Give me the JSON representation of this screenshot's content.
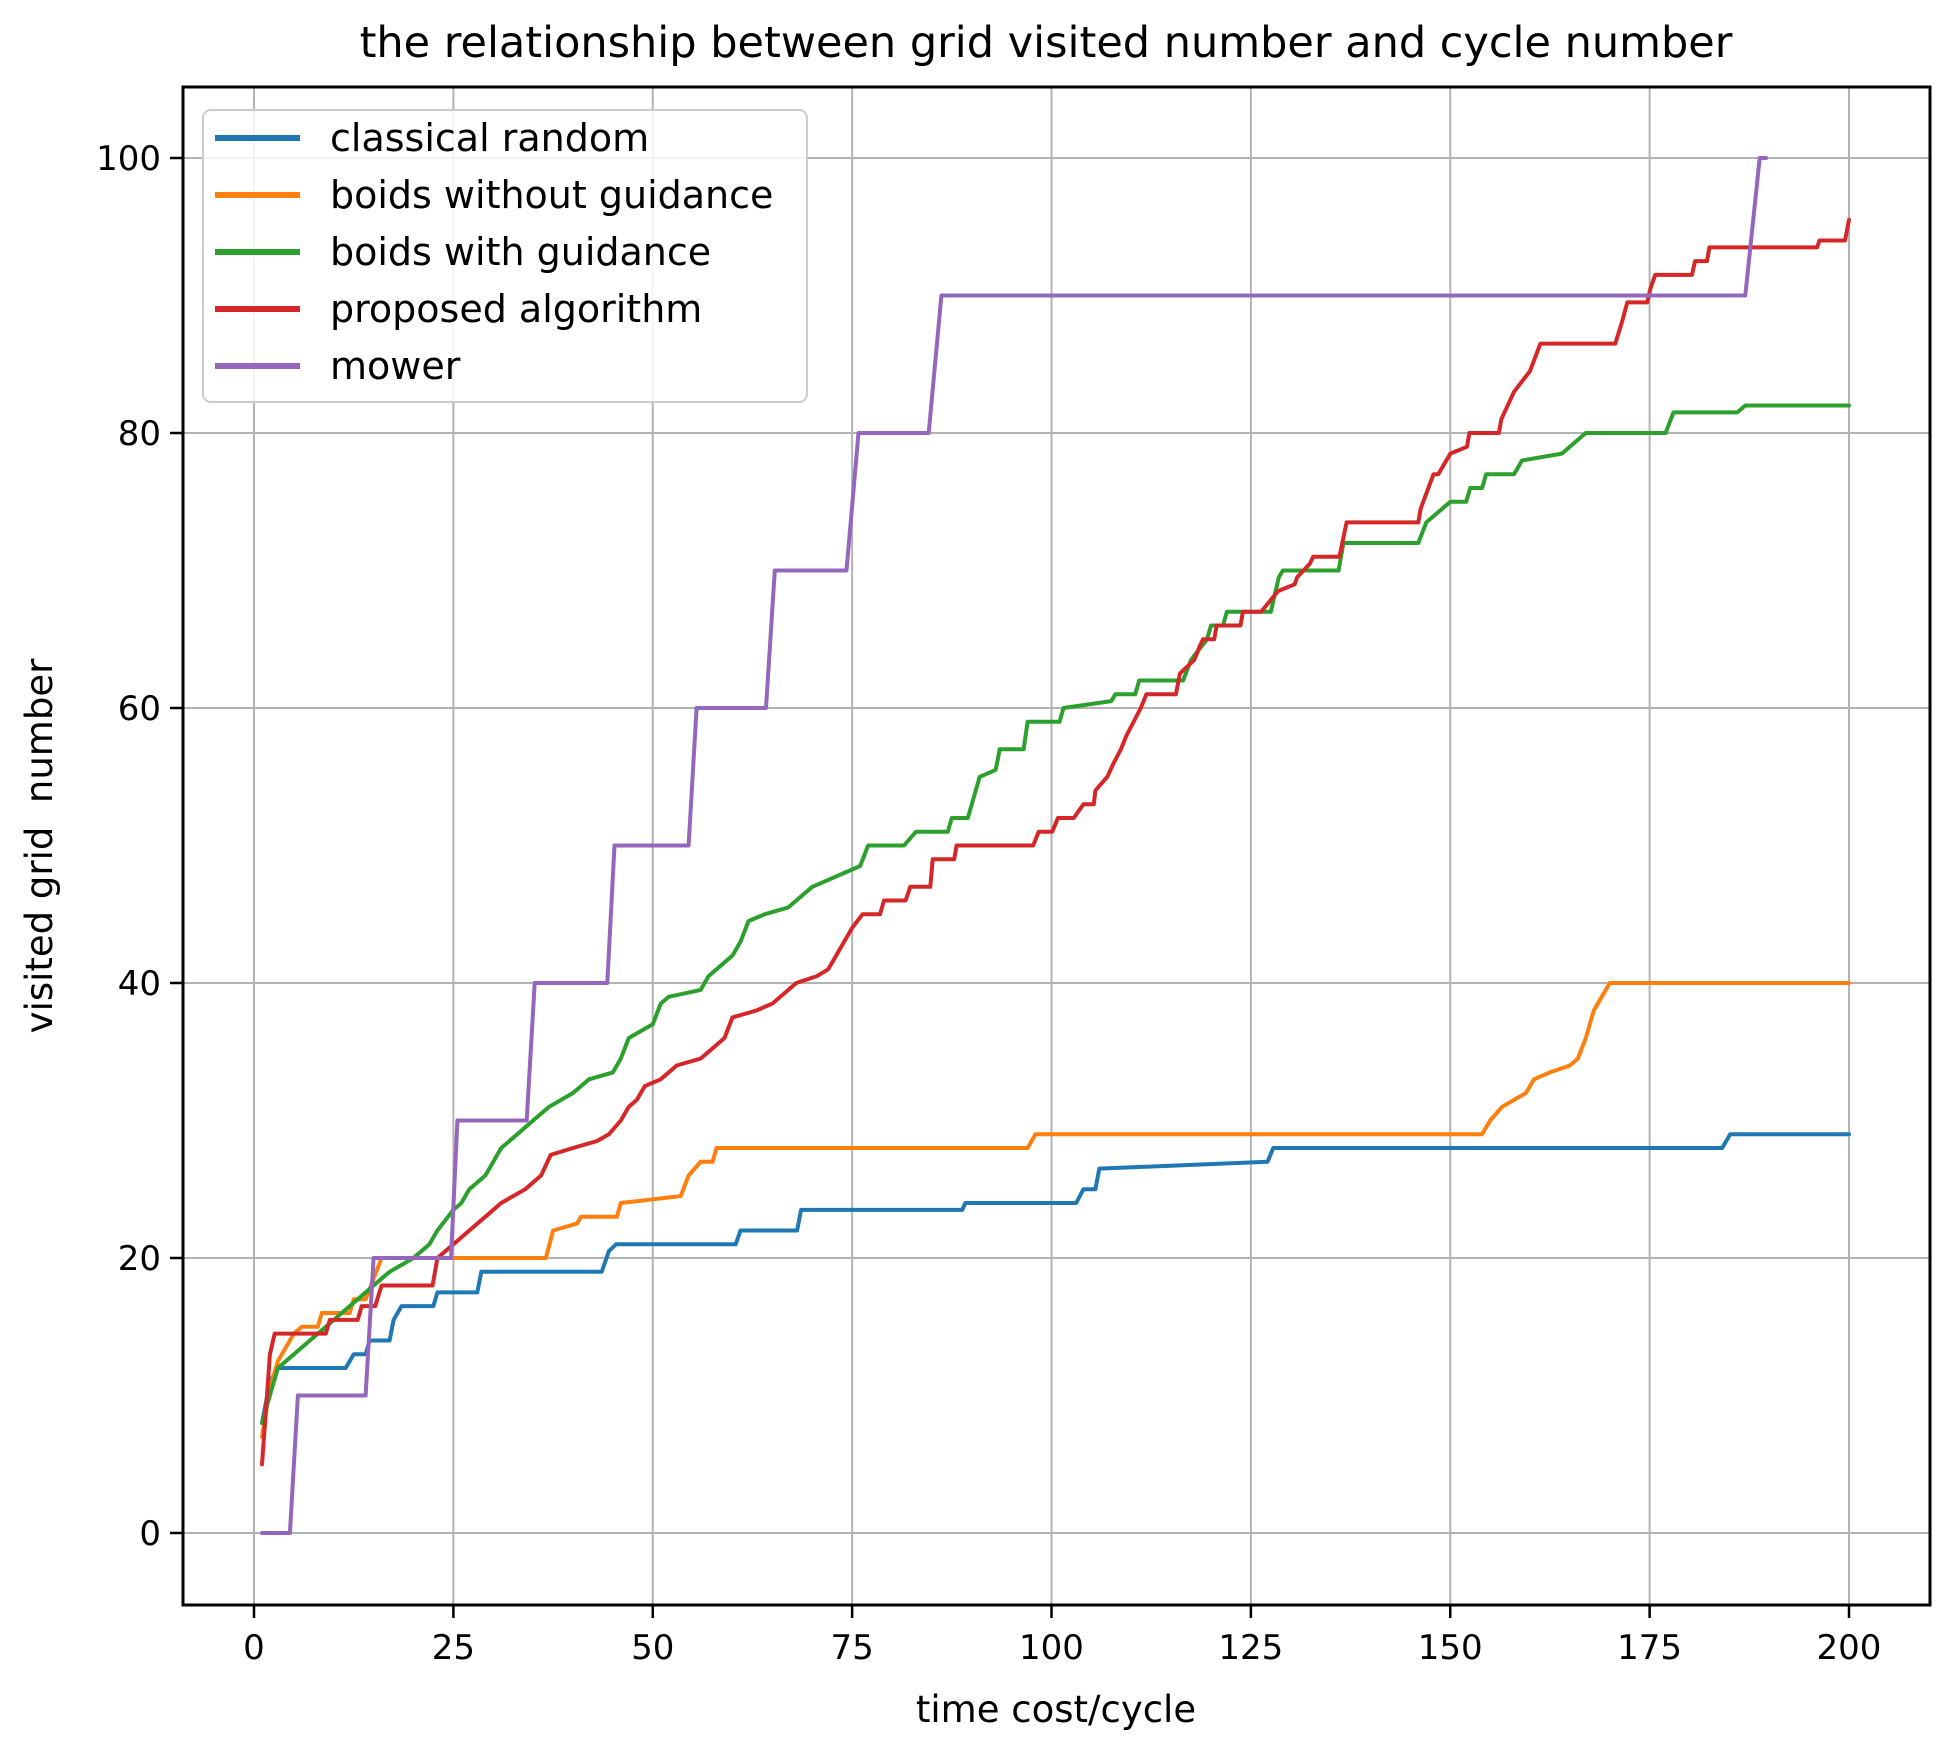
{
  "figure": {
    "title": "the relationship between grid visited number and cycle number",
    "xlabel": "time cost/cycle",
    "ylabel": "visited grid  number"
  },
  "chart_data": {
    "type": "line",
    "title": "the relationship between grid visited number and cycle number",
    "xlabel": "time cost/cycle",
    "ylabel": "visited grid  number",
    "xlim": [
      -8.9,
      210.2
    ],
    "ylim": [
      -5.2,
      105.2
    ],
    "x_ticks": [
      0,
      25,
      50,
      75,
      100,
      125,
      150,
      175,
      200
    ],
    "y_ticks": [
      0,
      20,
      40,
      60,
      80,
      100
    ],
    "grid": true,
    "grid_color": "#b3b3b3",
    "legend_position": "upper left",
    "series": [
      {
        "name": "classical random",
        "color": "#1f77b4",
        "points": [
          [
            1,
            8
          ],
          [
            2,
            11
          ],
          [
            3,
            12
          ],
          [
            11.5,
            12
          ],
          [
            12.5,
            13
          ],
          [
            14,
            13
          ],
          [
            14.5,
            14
          ],
          [
            17,
            14
          ],
          [
            17.5,
            15.5
          ],
          [
            18.5,
            16.5
          ],
          [
            22.5,
            16.5
          ],
          [
            23,
            17.5
          ],
          [
            28,
            17.5
          ],
          [
            28.5,
            19
          ],
          [
            43.6,
            19
          ],
          [
            44.5,
            20.5
          ],
          [
            45.4,
            21
          ],
          [
            60.4,
            21
          ],
          [
            61,
            22
          ],
          [
            68.1,
            22
          ],
          [
            68.6,
            23.5
          ],
          [
            88.8,
            23.5
          ],
          [
            89.2,
            24
          ],
          [
            103.1,
            24
          ],
          [
            104,
            25
          ],
          [
            105.5,
            25
          ],
          [
            106,
            26.5
          ],
          [
            127.1,
            27
          ],
          [
            127.8,
            28
          ],
          [
            184.1,
            28
          ],
          [
            185.1,
            29
          ],
          [
            200,
            29
          ]
        ]
      },
      {
        "name": "boids without guidance",
        "color": "#ff7f0e",
        "points": [
          [
            1,
            7
          ],
          [
            2,
            10.5
          ],
          [
            3,
            12.5
          ],
          [
            4,
            13.5
          ],
          [
            5,
            14.5
          ],
          [
            6,
            15
          ],
          [
            8,
            15
          ],
          [
            8.5,
            16
          ],
          [
            12,
            16
          ],
          [
            12.5,
            17
          ],
          [
            14,
            17
          ],
          [
            16,
            20
          ],
          [
            36.6,
            20
          ],
          [
            37.5,
            22
          ],
          [
            40.5,
            22.5
          ],
          [
            41,
            23
          ],
          [
            45.5,
            23
          ],
          [
            46,
            24
          ],
          [
            53.5,
            24.5
          ],
          [
            54.5,
            26
          ],
          [
            56,
            27
          ],
          [
            57.5,
            27
          ],
          [
            58,
            28
          ],
          [
            97,
            28
          ],
          [
            98,
            29
          ],
          [
            154,
            29
          ],
          [
            155,
            30
          ],
          [
            156.5,
            31
          ],
          [
            158,
            31.5
          ],
          [
            159.5,
            32
          ],
          [
            160.5,
            33
          ],
          [
            162.5,
            33.5
          ],
          [
            165,
            34
          ],
          [
            166,
            34.5
          ],
          [
            167,
            36
          ],
          [
            168,
            38
          ],
          [
            169,
            39
          ],
          [
            170,
            40
          ],
          [
            200,
            40
          ]
        ]
      },
      {
        "name": "boids with guidance",
        "color": "#2ca02c",
        "points": [
          [
            1,
            8
          ],
          [
            2,
            10
          ],
          [
            3,
            12
          ],
          [
            5,
            13
          ],
          [
            7,
            14
          ],
          [
            9,
            15
          ],
          [
            11,
            16
          ],
          [
            13,
            17
          ],
          [
            15,
            18
          ],
          [
            17,
            19
          ],
          [
            20,
            20
          ],
          [
            22,
            21
          ],
          [
            23,
            22
          ],
          [
            25,
            23.5
          ],
          [
            26,
            24
          ],
          [
            27,
            25
          ],
          [
            29,
            26
          ],
          [
            30,
            27
          ],
          [
            31,
            28
          ],
          [
            33,
            29
          ],
          [
            35,
            30
          ],
          [
            37,
            31
          ],
          [
            40,
            32
          ],
          [
            42,
            33
          ],
          [
            45,
            33.5
          ],
          [
            46,
            34.5
          ],
          [
            47,
            36
          ],
          [
            48.5,
            36.5
          ],
          [
            50,
            37
          ],
          [
            51,
            38.5
          ],
          [
            52,
            39
          ],
          [
            56,
            39.5
          ],
          [
            57,
            40.5
          ],
          [
            58,
            41
          ],
          [
            60,
            42
          ],
          [
            61,
            43
          ],
          [
            62,
            44.5
          ],
          [
            64,
            45
          ],
          [
            67,
            45.5
          ],
          [
            68,
            46
          ],
          [
            70,
            47
          ],
          [
            72,
            47.5
          ],
          [
            74,
            48
          ],
          [
            76,
            48.5
          ],
          [
            77,
            50
          ],
          [
            81.5,
            50
          ],
          [
            83,
            51
          ],
          [
            87,
            51
          ],
          [
            87.5,
            52
          ],
          [
            89.5,
            52
          ],
          [
            91,
            55
          ],
          [
            93,
            55.5
          ],
          [
            93.5,
            57
          ],
          [
            96.5,
            57
          ],
          [
            97,
            59
          ],
          [
            101,
            59
          ],
          [
            101.5,
            60
          ],
          [
            107.5,
            60.5
          ],
          [
            108,
            61
          ],
          [
            110.5,
            61
          ],
          [
            111,
            62
          ],
          [
            116.5,
            62
          ],
          [
            117.5,
            63.5
          ],
          [
            119.5,
            65
          ],
          [
            120,
            66
          ],
          [
            121.5,
            66
          ],
          [
            122,
            67
          ],
          [
            127.5,
            67
          ],
          [
            128.5,
            69.5
          ],
          [
            129,
            70
          ],
          [
            136,
            70
          ],
          [
            136.6,
            72
          ],
          [
            146,
            72
          ],
          [
            147,
            73.5
          ],
          [
            148,
            74
          ],
          [
            150,
            75
          ],
          [
            152,
            75
          ],
          [
            152.5,
            76
          ],
          [
            154,
            76
          ],
          [
            154.5,
            77
          ],
          [
            158,
            77
          ],
          [
            159,
            78
          ],
          [
            164,
            78.5
          ],
          [
            166,
            79.5
          ],
          [
            167,
            80
          ],
          [
            177,
            80
          ],
          [
            178,
            81.5
          ],
          [
            186,
            81.5
          ],
          [
            187,
            82
          ],
          [
            200,
            82
          ]
        ]
      },
      {
        "name": "proposed algorithm",
        "color": "#d62728",
        "points": [
          [
            1,
            5
          ],
          [
            1.5,
            9
          ],
          [
            2,
            13
          ],
          [
            2.6,
            14.5
          ],
          [
            9,
            14.5
          ],
          [
            9.5,
            15.5
          ],
          [
            13,
            15.5
          ],
          [
            13.5,
            16.5
          ],
          [
            15.2,
            16.5
          ],
          [
            16,
            18
          ],
          [
            22.4,
            18
          ],
          [
            23,
            20
          ],
          [
            25,
            21
          ],
          [
            27,
            22
          ],
          [
            29,
            23
          ],
          [
            31,
            24
          ],
          [
            34,
            25
          ],
          [
            36,
            26
          ],
          [
            37.2,
            27.5
          ],
          [
            40,
            28
          ],
          [
            43,
            28.5
          ],
          [
            44.5,
            29
          ],
          [
            46,
            30
          ],
          [
            47,
            31
          ],
          [
            48,
            31.5
          ],
          [
            49,
            32.5
          ],
          [
            51,
            33
          ],
          [
            53,
            34
          ],
          [
            56,
            34.5
          ],
          [
            57,
            35
          ],
          [
            59,
            36
          ],
          [
            60,
            37.5
          ],
          [
            63,
            38
          ],
          [
            65,
            38.5
          ],
          [
            68,
            40
          ],
          [
            70.6,
            40.5
          ],
          [
            72,
            41
          ],
          [
            73,
            42
          ],
          [
            74,
            43
          ],
          [
            75,
            44
          ],
          [
            76.3,
            45
          ],
          [
            78.5,
            45
          ],
          [
            79,
            46
          ],
          [
            81.7,
            46
          ],
          [
            82.3,
            47
          ],
          [
            84.8,
            47
          ],
          [
            85.1,
            49
          ],
          [
            87.8,
            49
          ],
          [
            88.1,
            50
          ],
          [
            97.7,
            50
          ],
          [
            98.4,
            51
          ],
          [
            100.1,
            51
          ],
          [
            100.8,
            52
          ],
          [
            102.8,
            52
          ],
          [
            104,
            53
          ],
          [
            105.3,
            53
          ],
          [
            105.5,
            54
          ],
          [
            107,
            55
          ],
          [
            107.8,
            56
          ],
          [
            108.7,
            57
          ],
          [
            109.4,
            58
          ],
          [
            111.2,
            60
          ],
          [
            111.9,
            61
          ],
          [
            115.6,
            61
          ],
          [
            116.1,
            62.5
          ],
          [
            117.9,
            63.5
          ],
          [
            118.6,
            64.5
          ],
          [
            119,
            65
          ],
          [
            120.4,
            65
          ],
          [
            120.7,
            66
          ],
          [
            123.7,
            66
          ],
          [
            124,
            67
          ],
          [
            126.3,
            67
          ],
          [
            128.4,
            68.5
          ],
          [
            130.5,
            69
          ],
          [
            130.8,
            69.5
          ],
          [
            132.4,
            70.5
          ],
          [
            132.8,
            71
          ],
          [
            136.1,
            71
          ],
          [
            137,
            73.5
          ],
          [
            146,
            73.5
          ],
          [
            146.3,
            74.5
          ],
          [
            147.9,
            77
          ],
          [
            148.5,
            77
          ],
          [
            150,
            78.5
          ],
          [
            152.1,
            79
          ],
          [
            152.4,
            80
          ],
          [
            156.1,
            80
          ],
          [
            156.4,
            81
          ],
          [
            158,
            83
          ],
          [
            160,
            84.5
          ],
          [
            161.3,
            86.5
          ],
          [
            170.7,
            86.5
          ],
          [
            171.5,
            88
          ],
          [
            172.2,
            89.5
          ],
          [
            174.7,
            89.5
          ],
          [
            175.1,
            90.5
          ],
          [
            175.7,
            91.5
          ],
          [
            180.3,
            91.5
          ],
          [
            180.7,
            92.5
          ],
          [
            182.2,
            92.5
          ],
          [
            182.5,
            93.5
          ],
          [
            196,
            93.5
          ],
          [
            196.3,
            94
          ],
          [
            199.5,
            94
          ],
          [
            200,
            95.5
          ]
        ]
      },
      {
        "name": "mower",
        "color": "#9467bd",
        "points": [
          [
            1,
            0
          ],
          [
            4.5,
            0
          ],
          [
            5.5,
            10
          ],
          [
            14,
            10
          ],
          [
            15,
            20
          ],
          [
            24.7,
            20
          ],
          [
            25.5,
            30
          ],
          [
            34.2,
            30
          ],
          [
            35.2,
            40
          ],
          [
            44.3,
            40
          ],
          [
            45.2,
            50
          ],
          [
            54.5,
            50
          ],
          [
            55.5,
            60
          ],
          [
            64.2,
            60
          ],
          [
            65.3,
            70
          ],
          [
            74.3,
            70
          ],
          [
            75.8,
            80
          ],
          [
            84.6,
            80
          ],
          [
            86.2,
            90
          ],
          [
            187,
            90
          ],
          [
            188.8,
            100
          ],
          [
            189.6,
            100
          ]
        ]
      }
    ]
  }
}
